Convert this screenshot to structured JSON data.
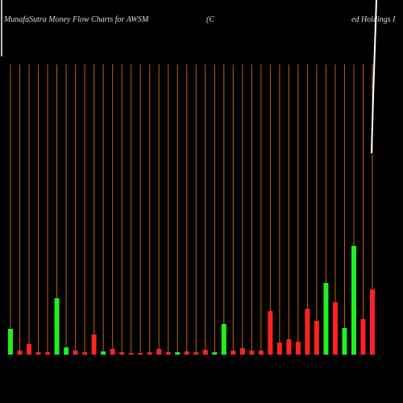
{
  "chart_data": {
    "type": "bar",
    "title": "MunafaSutra  Money Flow  Charts for AWSM",
    "title_parts": [
      "(C",
      "ed Holdings I"
    ],
    "categories": [
      null,
      null,
      null,
      null,
      null,
      null,
      null,
      null,
      null,
      null,
      null,
      null,
      null,
      null,
      null,
      null,
      null,
      null,
      null,
      null,
      null,
      null,
      null,
      null,
      null,
      null,
      null,
      null,
      null,
      null,
      null,
      null,
      null,
      null,
      null,
      null,
      null,
      null,
      null,
      null
    ],
    "values": [
      32,
      5,
      13,
      3,
      3,
      70,
      9,
      5,
      3,
      25,
      4,
      7,
      3,
      2,
      2,
      3,
      7,
      3,
      3,
      4,
      3,
      6,
      3,
      38,
      5,
      8,
      5,
      5,
      54,
      15,
      19,
      16,
      57,
      42,
      89,
      65,
      33,
      135,
      44,
      81
    ],
    "colors": [
      "#22ee22",
      "#ff2222",
      "#ff2222",
      "#ff2222",
      "#ff2222",
      "#22ee22",
      "#22ee22",
      "#ff2222",
      "#ff2222",
      "#ff2222",
      "#22ee22",
      "#ff2222",
      "#ff2222",
      "#ff2222",
      "#ff2222",
      "#ff2222",
      "#ff2222",
      "#ff2222",
      "#22ee22",
      "#ff2222",
      "#ff2222",
      "#ff2222",
      "#22ee22",
      "#22ee22",
      "#ff2222",
      "#ff2222",
      "#ff2222",
      "#ff2222",
      "#ff2222",
      "#ff2222",
      "#ff2222",
      "#ff2222",
      "#ff2222",
      "#ff2222",
      "#22ee22",
      "#ff2222",
      "#22ee22",
      "#22ee22",
      "#ff2222",
      "#ff2222"
    ],
    "grid_color": "#b8650f"
  }
}
